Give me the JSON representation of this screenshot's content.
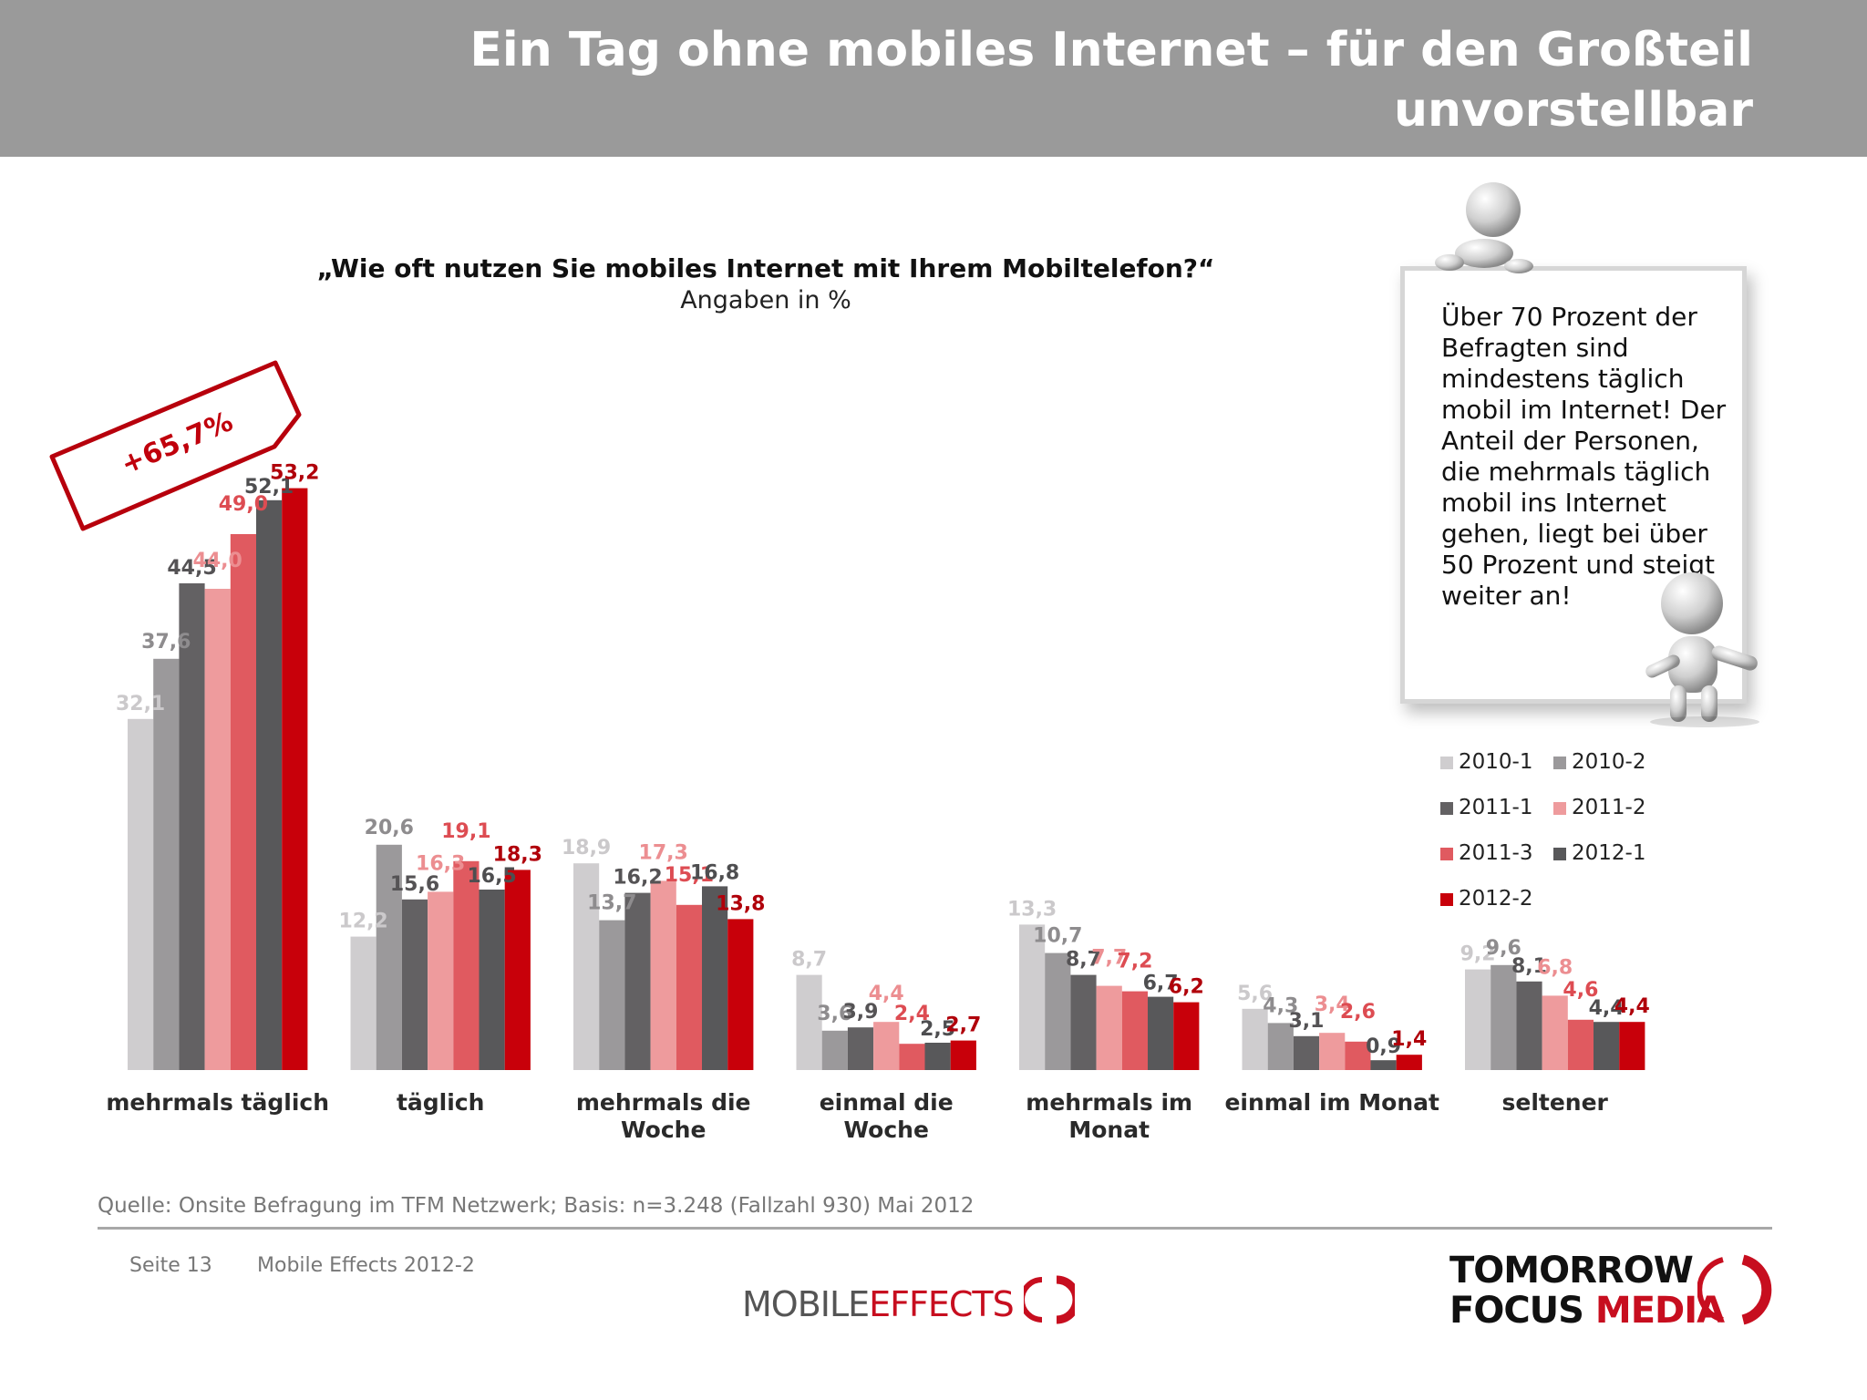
{
  "header": {
    "title": "Ein Tag ohne mobiles Internet – für den Großteil unvorstellbar"
  },
  "badge": {
    "label": "+65,7%"
  },
  "info_box": {
    "text": "Über 70 Prozent der Befragten sind mindestens täglich mobil im Internet! Der Anteil der Personen, die mehrmals täglich mobil ins Internet gehen, liegt bei über 50 Prozent und steigt weiter an!"
  },
  "footer": {
    "source": "Quelle: Onsite Befragung im TFM Netzwerk; Basis: n=3.248 (Fallzahl 930) Mai 2012",
    "page": "Seite 13",
    "doc": "Mobile Effects 2012-2",
    "logo_me_a": "MOBILE",
    "logo_me_b": "EFFECTS",
    "logo_tfm_1": "TOMORROW",
    "logo_tfm_2a": "FOCUS",
    "logo_tfm_2b": "MEDIA"
  },
  "colors": {
    "2010-1": "#cfcdcf",
    "2010-2": "#9b999b",
    "2011-1": "#636163",
    "2011-2": "#ee9b9d",
    "2011-3": "#e05a60",
    "2012-1": "#58585a",
    "2012-2": "#c8000a"
  },
  "label_colors": {
    "2010-1": "#cbc9cb",
    "2010-2": "#8e8c8e",
    "2011-1": "#555355",
    "2011-2": "#ec8e91",
    "2011-3": "#dd4c52",
    "2012-1": "#4e4e50",
    "2012-2": "#b0000a"
  },
  "chart_data": {
    "type": "bar",
    "title": "„Wie oft nutzen Sie mobiles Internet mit Ihrem Mobiltelefon?“",
    "subtitle": "Angaben in %",
    "categories": [
      [
        "mehrmals täglich"
      ],
      [
        "täglich"
      ],
      [
        "mehrmals die",
        "Woche"
      ],
      [
        "einmal die",
        "Woche"
      ],
      [
        "mehrmals im",
        "Monat"
      ],
      [
        "einmal im Monat"
      ],
      [
        "seltener"
      ]
    ],
    "series": [
      {
        "name": "2010-1",
        "values": [
          32.1,
          12.2,
          18.9,
          8.7,
          13.3,
          5.6,
          9.2
        ]
      },
      {
        "name": "2010-2",
        "values": [
          37.6,
          20.6,
          13.7,
          3.6,
          10.7,
          4.3,
          9.6
        ]
      },
      {
        "name": "2011-1",
        "values": [
          44.5,
          15.6,
          16.2,
          3.9,
          8.7,
          3.1,
          8.1
        ]
      },
      {
        "name": "2011-2",
        "values": [
          44.0,
          16.3,
          17.3,
          4.4,
          7.7,
          3.4,
          6.8
        ]
      },
      {
        "name": "2011-3",
        "values": [
          49.0,
          19.1,
          15.1,
          2.4,
          7.2,
          2.6,
          4.6
        ]
      },
      {
        "name": "2012-1",
        "values": [
          52.1,
          16.5,
          16.8,
          2.5,
          6.7,
          0.9,
          4.4
        ]
      },
      {
        "name": "2012-2",
        "values": [
          53.2,
          18.3,
          13.8,
          2.7,
          6.2,
          1.4,
          4.4
        ]
      }
    ],
    "value_labels": [
      [
        "32,1",
        "12,2",
        "18,9",
        "8,7",
        "13,3",
        "5,6",
        "9,2"
      ],
      [
        "37,6",
        "20,6",
        "13,7",
        "3,6",
        "10,7",
        "4,3",
        "9,6"
      ],
      [
        "44,5",
        "15,6",
        "16,2",
        "3,9",
        "8,7",
        "3,1",
        "8,1"
      ],
      [
        "44,0",
        "16,3",
        "17,3",
        "4,4",
        "7,7",
        "3,4",
        "6,8"
      ],
      [
        "49,0",
        "19,1",
        "15,1",
        "2,4",
        "7,2",
        "2,6",
        "4,6"
      ],
      [
        "52,1",
        "16,5",
        "16,8",
        "2,5",
        "6,7",
        "0,9",
        "4,4"
      ],
      [
        "53,2",
        "18,3",
        "13,8",
        "2,7",
        "6,2",
        "1,4",
        "4,4"
      ]
    ],
    "legend_placement": "right",
    "grid": false
  }
}
